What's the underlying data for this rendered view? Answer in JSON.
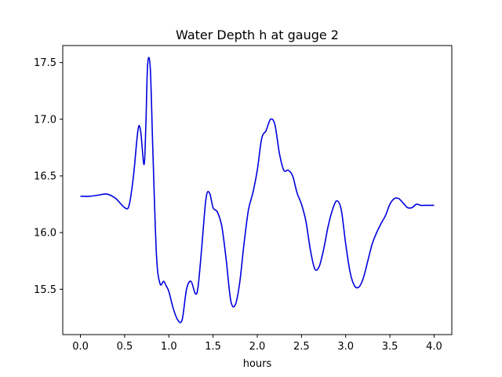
{
  "chart_data": {
    "type": "line",
    "title": "Water Depth h at gauge 2",
    "xlabel": "hours",
    "ylabel": "",
    "xlim": [
      -0.2,
      4.2
    ],
    "ylim": [
      15.1,
      17.65
    ],
    "x_ticks": [
      0.0,
      0.5,
      1.0,
      1.5,
      2.0,
      2.5,
      3.0,
      3.5,
      4.0
    ],
    "x_tick_labels": [
      "0.0",
      "0.5",
      "1.0",
      "1.5",
      "2.0",
      "2.5",
      "3.0",
      "3.5",
      "4.0"
    ],
    "y_ticks": [
      15.5,
      16.0,
      16.5,
      17.0,
      17.5
    ],
    "y_tick_labels": [
      "15.5",
      "16.0",
      "16.5",
      "17.0",
      "17.5"
    ],
    "grid": false,
    "line_color": "#0000dd",
    "series": [
      {
        "x": [
          0.0,
          0.1,
          0.2,
          0.3,
          0.4,
          0.5,
          0.55,
          0.6,
          0.65,
          0.68,
          0.72,
          0.74,
          0.76,
          0.79,
          0.82,
          0.86,
          0.9,
          0.94,
          0.97,
          1.0,
          1.05,
          1.1,
          1.15,
          1.2,
          1.25,
          1.3,
          1.33,
          1.37,
          1.42,
          1.46,
          1.5,
          1.55,
          1.6,
          1.65,
          1.7,
          1.75,
          1.8,
          1.85,
          1.9,
          1.95,
          2.0,
          2.05,
          2.1,
          2.15,
          2.2,
          2.25,
          2.3,
          2.35,
          2.4,
          2.45,
          2.5,
          2.55,
          2.6,
          2.65,
          2.7,
          2.75,
          2.8,
          2.85,
          2.9,
          2.95,
          3.0,
          3.05,
          3.1,
          3.15,
          3.2,
          3.25,
          3.3,
          3.35,
          3.4,
          3.45,
          3.5,
          3.55,
          3.6,
          3.65,
          3.7,
          3.75,
          3.8,
          3.85,
          3.9,
          3.95,
          4.0
        ],
        "y": [
          16.32,
          16.32,
          16.33,
          16.34,
          16.3,
          16.22,
          16.24,
          16.5,
          16.9,
          16.9,
          16.6,
          16.95,
          17.48,
          17.45,
          16.7,
          15.8,
          15.55,
          15.57,
          15.53,
          15.48,
          15.33,
          15.23,
          15.23,
          15.5,
          15.57,
          15.46,
          15.52,
          15.85,
          16.3,
          16.35,
          16.22,
          16.18,
          16.05,
          15.75,
          15.4,
          15.36,
          15.55,
          15.9,
          16.2,
          16.35,
          16.55,
          16.83,
          16.9,
          17.0,
          16.95,
          16.7,
          16.55,
          16.55,
          16.5,
          16.35,
          16.25,
          16.1,
          15.85,
          15.68,
          15.7,
          15.85,
          16.05,
          16.2,
          16.28,
          16.2,
          15.9,
          15.65,
          15.53,
          15.52,
          15.6,
          15.75,
          15.9,
          16.0,
          16.08,
          16.15,
          16.25,
          16.3,
          16.3,
          16.26,
          16.22,
          16.22,
          16.25,
          16.24,
          16.24,
          16.24,
          16.24
        ]
      }
    ]
  }
}
